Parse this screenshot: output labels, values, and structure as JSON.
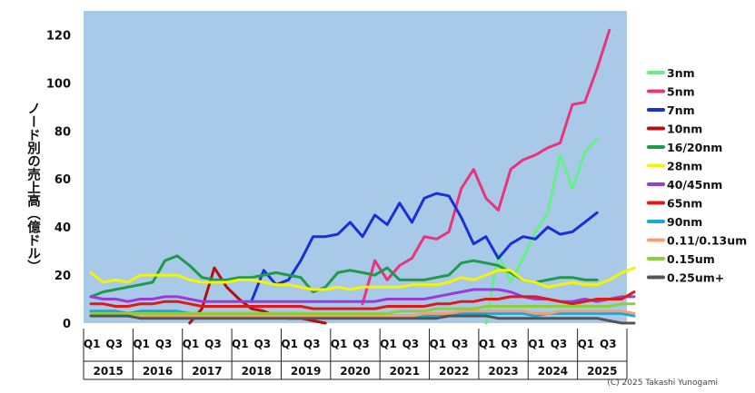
{
  "chart_data": {
    "type": "line",
    "title": "",
    "ylabel": "ノード別の売上高（億ドル）",
    "xlabel": "",
    "ylim": [
      0,
      130
    ],
    "yticks": [
      0,
      20,
      40,
      60,
      80,
      100,
      120
    ],
    "grid": false,
    "legend_position": "right",
    "background_color": "#a9c9e8",
    "x_tick_labels": [
      "Q1",
      "Q3",
      "Q1",
      "Q3",
      "Q1",
      "Q3",
      "Q1",
      "Q3",
      "Q1",
      "Q3",
      "Q1",
      "Q3",
      "Q1",
      "Q3",
      "Q1",
      "Q3",
      "Q1",
      "Q3",
      "Q1",
      "Q3",
      "Q1",
      "Q3"
    ],
    "years": [
      "2015",
      "2016",
      "2017",
      "2018",
      "2019",
      "2020",
      "2021",
      "2022",
      "2023",
      "2024",
      "2025"
    ],
    "copyright": "(C) 2025 Takashi Yunogami",
    "series": [
      {
        "name": "3nm",
        "color": "#66ee88",
        "start": 32,
        "values": [
          0,
          29,
          17,
          27,
          38,
          46,
          70,
          56,
          71,
          77
        ]
      },
      {
        "name": "5nm",
        "color": "#e8357a",
        "start": 22,
        "values": [
          8,
          26,
          18,
          24,
          27,
          36,
          35,
          38,
          56,
          64,
          52,
          47,
          64,
          68,
          70,
          73,
          75,
          91,
          92,
          106,
          122
        ]
      },
      {
        "name": "7nm",
        "color": "#1a2fd6",
        "start": 13,
        "values": [
          9,
          22,
          16,
          18,
          26,
          36,
          36,
          37,
          42,
          36,
          45,
          41,
          50,
          42,
          52,
          54,
          53,
          44,
          33,
          36,
          27,
          33,
          36,
          35,
          40,
          37,
          38,
          42,
          46
        ]
      },
      {
        "name": "10nm",
        "color": "#b01010",
        "start": 8,
        "values": [
          0,
          6,
          23,
          15,
          10,
          6,
          5,
          3,
          2,
          2,
          1,
          0
        ]
      },
      {
        "name": "16/20nm",
        "color": "#1e9a4a",
        "start": 0,
        "values": [
          11,
          13,
          14,
          15,
          16,
          17,
          26,
          28,
          24,
          19,
          18,
          18,
          19,
          19,
          20,
          21,
          20,
          19,
          13,
          15,
          21,
          22,
          21,
          20,
          23,
          18,
          18,
          18,
          19,
          20,
          25,
          26,
          25,
          24,
          21,
          18,
          17,
          18,
          19,
          19,
          18,
          18
        ]
      },
      {
        "name": "28nm",
        "color": "#f5f500",
        "start": 0,
        "values": [
          21,
          17,
          18,
          17,
          20,
          20,
          20,
          20,
          18,
          17,
          17,
          17,
          18,
          18,
          17,
          16,
          16,
          15,
          14,
          14,
          15,
          14,
          15,
          15,
          15,
          15,
          16,
          16,
          16,
          17,
          19,
          18,
          20,
          22,
          22,
          18,
          17,
          15,
          16,
          17,
          16,
          16,
          18,
          21,
          23
        ]
      },
      {
        "name": "40/45nm",
        "color": "#9a3ad8",
        "start": 0,
        "values": [
          11,
          10,
          10,
          9,
          10,
          10,
          11,
          11,
          10,
          9,
          9,
          9,
          9,
          9,
          9,
          9,
          9,
          9,
          9,
          9,
          9,
          9,
          9,
          9,
          10,
          10,
          10,
          10,
          11,
          12,
          13,
          14,
          14,
          14,
          13,
          11,
          10,
          10,
          9,
          9,
          10,
          9,
          10,
          11,
          11
        ]
      },
      {
        "name": "65nm",
        "color": "#e01818",
        "start": 0,
        "values": [
          8,
          8,
          7,
          7,
          8,
          8,
          9,
          9,
          8,
          7,
          7,
          7,
          7,
          7,
          7,
          7,
          7,
          7,
          6,
          6,
          6,
          6,
          6,
          6,
          7,
          7,
          7,
          7,
          8,
          8,
          9,
          9,
          10,
          10,
          11,
          11,
          11,
          10,
          9,
          8,
          9,
          10,
          10,
          10,
          13
        ]
      },
      {
        "name": "90nm",
        "color": "#1aa6d8",
        "start": 0,
        "values": [
          5,
          5,
          5,
          4,
          5,
          5,
          5,
          5,
          4,
          4,
          4,
          4,
          4,
          4,
          4,
          4,
          4,
          4,
          3,
          3,
          3,
          3,
          3,
          3,
          3,
          3,
          3,
          3,
          3,
          4,
          4,
          4,
          4,
          4,
          4,
          4,
          3,
          4,
          4,
          4,
          4,
          4,
          4,
          4,
          3
        ]
      },
      {
        "name": "0.11/0.13um",
        "color": "#f4a070",
        "start": 0,
        "values": [
          3,
          3,
          3,
          3,
          3,
          3,
          3,
          3,
          3,
          3,
          3,
          3,
          3,
          3,
          3,
          3,
          3,
          3,
          3,
          3,
          3,
          3,
          3,
          3,
          3,
          3,
          3,
          4,
          4,
          4,
          5,
          5,
          5,
          5,
          5,
          5,
          4,
          4,
          5,
          5,
          5,
          5,
          5,
          5,
          4
        ]
      },
      {
        "name": "0.15um",
        "color": "#8ccf3a",
        "start": 0,
        "values": [
          4,
          4,
          4,
          4,
          4,
          4,
          4,
          4,
          4,
          4,
          4,
          4,
          4,
          4,
          4,
          4,
          4,
          4,
          4,
          4,
          4,
          4,
          4,
          4,
          4,
          5,
          5,
          5,
          6,
          6,
          6,
          6,
          7,
          7,
          7,
          7,
          7,
          7,
          7,
          7,
          7,
          7,
          7,
          8,
          8
        ]
      },
      {
        "name": "0.25um+",
        "color": "#555555",
        "start": 0,
        "values": [
          3,
          3,
          3,
          3,
          2,
          2,
          2,
          2,
          2,
          2,
          2,
          2,
          2,
          2,
          2,
          2,
          2,
          2,
          2,
          2,
          2,
          2,
          2,
          2,
          2,
          2,
          2,
          2,
          2,
          3,
          3,
          3,
          3,
          2,
          2,
          2,
          2,
          2,
          2,
          2,
          2,
          2,
          1,
          0,
          0
        ]
      }
    ]
  }
}
